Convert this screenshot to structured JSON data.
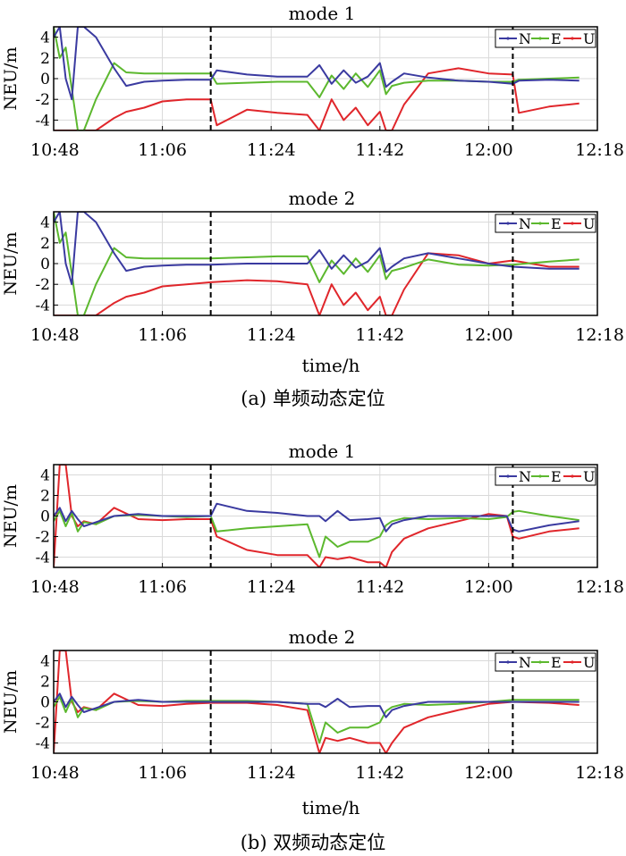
{
  "figure": {
    "caption_a": "(a) 单频动态定位",
    "caption_b": "(b) 双频动态定位",
    "xlabel": "time/h",
    "colors": {
      "N": "#3a3aa0",
      "E": "#5cb82e",
      "U": "#e0262b",
      "divider": "#000000"
    }
  },
  "chart_data": [
    {
      "type": "line",
      "title": "mode 1",
      "ylabel": "NEU/m",
      "xlabel": "",
      "ylim": [
        -5,
        5
      ],
      "xlim": [
        "10:48",
        "12:18"
      ],
      "x_ticks": [
        "10:48",
        "11:06",
        "11:24",
        "11:42",
        "12:00",
        "12:18"
      ],
      "y_ticks": [
        4,
        2,
        0,
        -2,
        -4
      ],
      "grid": true,
      "legend": "top-right",
      "dividers": [
        "11:14",
        "12:04"
      ],
      "series": [
        {
          "name": "N",
          "x": [
            "10:48",
            "10:49",
            "10:50",
            "10:51",
            "10:52",
            "10:53",
            "10:55",
            "10:58",
            "11:00",
            "11:03",
            "11:06",
            "11:10",
            "11:14",
            "11:15",
            "11:20",
            "11:25",
            "11:30",
            "11:32",
            "11:34",
            "11:36",
            "11:38",
            "11:40",
            "11:42",
            "11:43",
            "11:44",
            "11:46",
            "11:50",
            "11:55",
            "12:00",
            "12:04",
            "12:05",
            "12:10",
            "12:15"
          ],
          "y": [
            4,
            5,
            0,
            -2,
            6,
            6,
            4,
            1,
            -0.7,
            -0.3,
            -0.2,
            -0.1,
            -0.1,
            0.8,
            0.4,
            0.2,
            0.2,
            1.3,
            -0.5,
            0.8,
            -0.4,
            0.2,
            1.5,
            -0.8,
            -0.3,
            0.5,
            0.1,
            -0.2,
            -0.3,
            -0.5,
            -0.2,
            -0.1,
            -0.2
          ]
        },
        {
          "name": "E",
          "x": [
            "10:48",
            "10:49",
            "10:50",
            "10:51",
            "10:52",
            "10:53",
            "10:55",
            "10:58",
            "11:00",
            "11:03",
            "11:06",
            "11:10",
            "11:14",
            "11:15",
            "11:20",
            "11:25",
            "11:30",
            "11:32",
            "11:34",
            "11:36",
            "11:38",
            "11:40",
            "11:42",
            "11:43",
            "11:44",
            "11:46",
            "11:50",
            "11:55",
            "12:00",
            "12:04",
            "12:05",
            "12:10",
            "12:15"
          ],
          "y": [
            5,
            2,
            3,
            -1,
            -5,
            -5,
            -2,
            1.5,
            0.6,
            0.5,
            0.5,
            0.5,
            0.5,
            -0.5,
            -0.4,
            -0.3,
            -0.3,
            -1.8,
            0.3,
            -1,
            0.5,
            -0.8,
            0.8,
            -1.5,
            -0.7,
            -0.4,
            -0.2,
            -0.2,
            -0.3,
            -0.3,
            -0.1,
            0,
            0.1
          ]
        },
        {
          "name": "U",
          "x": [
            "10:48",
            "10:49",
            "10:50",
            "10:51",
            "10:52",
            "10:53",
            "10:55",
            "10:58",
            "11:00",
            "11:03",
            "11:06",
            "11:10",
            "11:14",
            "11:15",
            "11:20",
            "11:25",
            "11:30",
            "11:32",
            "11:34",
            "11:36",
            "11:38",
            "11:40",
            "11:42",
            "11:43",
            "11:44",
            "11:46",
            "11:50",
            "11:55",
            "12:00",
            "12:04",
            "12:05",
            "12:10",
            "12:15"
          ],
          "y": [
            -5,
            -5,
            -5,
            -5,
            -5,
            -5,
            -5,
            -3.8,
            -3.2,
            -2.8,
            -2.2,
            -2,
            -2,
            -4.5,
            -3,
            -3.3,
            -3.5,
            -5,
            -2,
            -4,
            -2.8,
            -4.5,
            -3.2,
            -5,
            -5,
            -2.5,
            0.5,
            1,
            0.5,
            0.4,
            -3.3,
            -2.7,
            -2.4
          ]
        }
      ]
    },
    {
      "type": "line",
      "title": "mode 2",
      "ylabel": "NEU/m",
      "xlabel": "time/h",
      "ylim": [
        -5,
        5
      ],
      "xlim": [
        "10:48",
        "12:18"
      ],
      "x_ticks": [
        "10:48",
        "11:06",
        "11:24",
        "11:42",
        "12:00",
        "12:18"
      ],
      "y_ticks": [
        4,
        2,
        0,
        -2,
        -4
      ],
      "grid": true,
      "legend": "top-right",
      "dividers": [
        "11:14",
        "12:04"
      ],
      "series": [
        {
          "name": "N",
          "x": [
            "10:48",
            "10:49",
            "10:50",
            "10:51",
            "10:52",
            "10:53",
            "10:55",
            "10:58",
            "11:00",
            "11:03",
            "11:06",
            "11:10",
            "11:14",
            "11:20",
            "11:25",
            "11:30",
            "11:32",
            "11:34",
            "11:36",
            "11:38",
            "11:40",
            "11:42",
            "11:43",
            "11:44",
            "11:46",
            "11:50",
            "11:55",
            "12:00",
            "12:04",
            "12:10",
            "12:15"
          ],
          "y": [
            4,
            5,
            0,
            -2,
            6,
            6,
            4,
            1,
            -0.7,
            -0.3,
            -0.2,
            -0.1,
            -0.1,
            0,
            0,
            0,
            1.3,
            -0.5,
            0.8,
            -0.4,
            0.2,
            1.5,
            -0.8,
            -0.3,
            0.5,
            1,
            0.5,
            0,
            -0.3,
            -0.5,
            -0.5
          ]
        },
        {
          "name": "E",
          "x": [
            "10:48",
            "10:49",
            "10:50",
            "10:51",
            "10:52",
            "10:53",
            "10:55",
            "10:58",
            "11:00",
            "11:03",
            "11:06",
            "11:10",
            "11:14",
            "11:20",
            "11:25",
            "11:30",
            "11:32",
            "11:34",
            "11:36",
            "11:38",
            "11:40",
            "11:42",
            "11:43",
            "11:44",
            "11:46",
            "11:50",
            "11:55",
            "12:00",
            "12:04",
            "12:10",
            "12:15"
          ],
          "y": [
            5,
            2,
            3,
            -1,
            -5,
            -5,
            -2,
            1.5,
            0.6,
            0.5,
            0.5,
            0.5,
            0.5,
            0.6,
            0.7,
            0.7,
            -1.8,
            0.3,
            -1,
            0.5,
            -0.8,
            0.8,
            -1.5,
            -0.7,
            -0.4,
            0.4,
            -0.1,
            -0.2,
            -0.1,
            0.2,
            0.4
          ]
        },
        {
          "name": "U",
          "x": [
            "10:48",
            "10:49",
            "10:50",
            "10:51",
            "10:52",
            "10:53",
            "10:55",
            "10:58",
            "11:00",
            "11:03",
            "11:06",
            "11:10",
            "11:14",
            "11:20",
            "11:25",
            "11:30",
            "11:32",
            "11:34",
            "11:36",
            "11:38",
            "11:40",
            "11:42",
            "11:43",
            "11:44",
            "11:46",
            "11:50",
            "11:55",
            "12:00",
            "12:04",
            "12:10",
            "12:15"
          ],
          "y": [
            -5,
            -5,
            -5,
            -5,
            -5,
            -5,
            -5,
            -3.8,
            -3.2,
            -2.8,
            -2.2,
            -2,
            -1.8,
            -1.6,
            -1.7,
            -2,
            -5,
            -2,
            -4,
            -2.8,
            -4.5,
            -3.2,
            -5,
            -5,
            -2.5,
            1,
            0.8,
            0,
            0.3,
            -0.3,
            -0.3
          ]
        }
      ]
    },
    {
      "type": "line",
      "title": "mode 1",
      "ylabel": "NEU/m",
      "xlabel": "",
      "ylim": [
        -5,
        5
      ],
      "xlim": [
        "10:48",
        "12:18"
      ],
      "x_ticks": [
        "10:48",
        "11:06",
        "11:24",
        "11:42",
        "12:00",
        "12:18"
      ],
      "y_ticks": [
        4,
        2,
        0,
        -2,
        -4
      ],
      "grid": true,
      "legend": "top-right",
      "dividers": [
        "11:14",
        "12:04"
      ],
      "series": [
        {
          "name": "N",
          "x": [
            "10:48",
            "10:49",
            "10:50",
            "10:51",
            "10:52",
            "10:53",
            "10:55",
            "10:58",
            "11:02",
            "11:06",
            "11:10",
            "11:14",
            "11:15",
            "11:20",
            "11:25",
            "11:30",
            "11:32",
            "11:33",
            "11:35",
            "11:37",
            "11:40",
            "11:42",
            "11:43",
            "11:44",
            "11:46",
            "11:50",
            "11:55",
            "12:00",
            "12:03",
            "12:04",
            "12:05",
            "12:10",
            "12:15"
          ],
          "y": [
            0,
            0.8,
            -0.5,
            0.5,
            -0.3,
            -1,
            -0.6,
            0,
            0.2,
            0,
            0,
            0,
            1.2,
            0.5,
            0.3,
            0,
            0,
            -0.5,
            0.5,
            -0.4,
            -0.3,
            -0.2,
            -1.5,
            -0.8,
            -0.4,
            0,
            0,
            0,
            0,
            -1.3,
            -1.5,
            -0.9,
            -0.5
          ]
        },
        {
          "name": "E",
          "x": [
            "10:48",
            "10:49",
            "10:50",
            "10:51",
            "10:52",
            "10:53",
            "10:55",
            "10:58",
            "11:02",
            "11:06",
            "11:10",
            "11:14",
            "11:15",
            "11:20",
            "11:25",
            "11:30",
            "11:32",
            "11:33",
            "11:35",
            "11:37",
            "11:40",
            "11:42",
            "11:43",
            "11:44",
            "11:46",
            "11:50",
            "11:55",
            "12:00",
            "12:03",
            "12:04",
            "12:05",
            "12:10",
            "12:15"
          ],
          "y": [
            -0.5,
            0.5,
            -1,
            0.3,
            -1.5,
            -0.6,
            -0.8,
            0,
            0.1,
            0,
            -0.1,
            0,
            -1.5,
            -1.2,
            -1,
            -0.8,
            -4,
            -2,
            -3,
            -2.5,
            -2.5,
            -2,
            -0.9,
            -0.5,
            -0.2,
            -0.3,
            -0.2,
            -0.3,
            -0.1,
            0.4,
            0.5,
            0,
            -0.4
          ]
        },
        {
          "name": "U",
          "x": [
            "10:48",
            "10:49",
            "10:50",
            "10:51",
            "10:52",
            "10:53",
            "10:55",
            "10:58",
            "11:02",
            "11:06",
            "11:10",
            "11:14",
            "11:15",
            "11:20",
            "11:25",
            "11:30",
            "11:32",
            "11:33",
            "11:35",
            "11:37",
            "11:40",
            "11:42",
            "11:43",
            "11:44",
            "11:46",
            "11:50",
            "11:55",
            "12:00",
            "12:03",
            "12:04",
            "12:05",
            "12:10",
            "12:15"
          ],
          "y": [
            -5,
            5,
            5,
            0,
            -1,
            -0.5,
            -0.8,
            0.8,
            -0.3,
            -0.4,
            -0.3,
            -0.3,
            -2,
            -3.3,
            -3.8,
            -3.8,
            -5,
            -4,
            -4.2,
            -4,
            -4.5,
            -4.5,
            -5,
            -3.5,
            -2.2,
            -1.2,
            -0.5,
            0.2,
            0,
            -2,
            -2.2,
            -1.5,
            -1.2
          ]
        }
      ]
    },
    {
      "type": "line",
      "title": "mode 2",
      "ylabel": "NEU/m",
      "xlabel": "time/h",
      "ylim": [
        -5,
        5
      ],
      "xlim": [
        "10:48",
        "12:18"
      ],
      "x_ticks": [
        "10:48",
        "11:06",
        "11:24",
        "11:42",
        "12:00",
        "12:18"
      ],
      "y_ticks": [
        4,
        2,
        0,
        -2,
        -4
      ],
      "grid": true,
      "legend": "top-right",
      "dividers": [
        "11:14",
        "12:04"
      ],
      "series": [
        {
          "name": "N",
          "x": [
            "10:48",
            "10:49",
            "10:50",
            "10:51",
            "10:52",
            "10:53",
            "10:55",
            "10:58",
            "11:02",
            "11:06",
            "11:10",
            "11:14",
            "11:20",
            "11:25",
            "11:30",
            "11:32",
            "11:33",
            "11:35",
            "11:37",
            "11:40",
            "11:42",
            "11:43",
            "11:44",
            "11:46",
            "11:50",
            "11:55",
            "12:00",
            "12:04",
            "12:10",
            "12:15"
          ],
          "y": [
            0,
            0.8,
            -0.5,
            0.5,
            -0.3,
            -1,
            -0.6,
            0,
            0.2,
            0,
            0,
            0,
            0,
            0,
            -0.2,
            -0.2,
            -0.5,
            0.3,
            -0.5,
            -0.4,
            -0.4,
            -1.5,
            -0.8,
            -0.4,
            0,
            0,
            0,
            0,
            0,
            0
          ]
        },
        {
          "name": "E",
          "x": [
            "10:48",
            "10:49",
            "10:50",
            "10:51",
            "10:52",
            "10:53",
            "10:55",
            "10:58",
            "11:02",
            "11:06",
            "11:10",
            "11:14",
            "11:20",
            "11:25",
            "11:30",
            "11:32",
            "11:33",
            "11:35",
            "11:37",
            "11:40",
            "11:42",
            "11:43",
            "11:44",
            "11:46",
            "11:50",
            "11:55",
            "12:00",
            "12:04",
            "12:10",
            "12:15"
          ],
          "y": [
            -0.5,
            0.5,
            -1,
            0.3,
            -1.5,
            -0.6,
            -0.8,
            0,
            0.1,
            0,
            0.1,
            0.1,
            0.1,
            0,
            -0.2,
            -4,
            -2,
            -3,
            -2.5,
            -2.5,
            -2,
            -0.9,
            -0.5,
            -0.2,
            -0.3,
            -0.2,
            0,
            0.2,
            0.2,
            0.2
          ]
        },
        {
          "name": "U",
          "x": [
            "10:48",
            "10:49",
            "10:50",
            "10:51",
            "10:52",
            "10:53",
            "10:55",
            "10:58",
            "11:02",
            "11:06",
            "11:10",
            "11:14",
            "11:20",
            "11:25",
            "11:30",
            "11:32",
            "11:33",
            "11:35",
            "11:37",
            "11:40",
            "11:42",
            "11:43",
            "11:44",
            "11:46",
            "11:50",
            "11:55",
            "12:00",
            "12:04",
            "12:10",
            "12:15"
          ],
          "y": [
            -5,
            5,
            5,
            0,
            -1,
            -0.5,
            -0.8,
            0.8,
            -0.3,
            -0.4,
            -0.2,
            -0.1,
            -0.1,
            -0.3,
            -0.8,
            -5,
            -3.5,
            -3.8,
            -3.5,
            -4,
            -4,
            -5,
            -4,
            -2.5,
            -1.5,
            -0.8,
            -0.2,
            0,
            -0.1,
            -0.3
          ]
        }
      ]
    }
  ]
}
